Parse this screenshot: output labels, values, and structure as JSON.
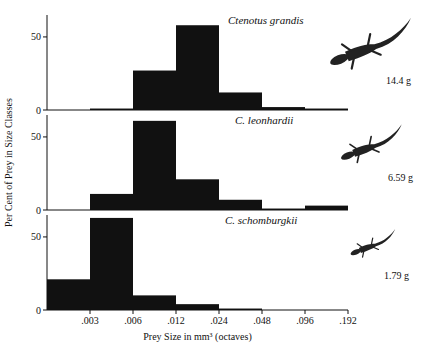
{
  "chart_data": [
    {
      "type": "histogram",
      "title": "Ctenotus grandis",
      "annotations": [
        "14.4 g"
      ],
      "bins": [
        0.0015,
        0.003,
        0.006,
        0.012,
        0.024,
        0.048,
        0.096,
        0.192
      ],
      "values": [
        0,
        1,
        27,
        58,
        12,
        2,
        1
      ],
      "xlim": [
        0.0015,
        0.192
      ],
      "log": "x",
      "ylim": [
        0,
        65
      ],
      "yticks": [
        0,
        50
      ],
      "color": "#111111"
    },
    {
      "type": "histogram",
      "title": "C. leonhardii",
      "annotations": [
        "6.59 g"
      ],
      "ylabel": "Per Cent of Prey in Size Classes",
      "bins": [
        0.0015,
        0.003,
        0.006,
        0.012,
        0.024,
        0.048,
        0.096,
        0.192
      ],
      "values": [
        0,
        11,
        61,
        21,
        7,
        1,
        3
      ],
      "xlim": [
        0.0015,
        0.192
      ],
      "log": "x",
      "ylim": [
        0,
        65
      ],
      "yticks": [
        0,
        50
      ],
      "color": "#111111"
    },
    {
      "type": "histogram",
      "title": "C. schomburgkii",
      "annotations": [
        "1.79 g"
      ],
      "xlabel": "Prey Size in mm³ (octaves)",
      "bins": [
        0.0015,
        0.003,
        0.006,
        0.012,
        0.024,
        0.048,
        0.096,
        0.192
      ],
      "values": [
        21,
        63,
        10,
        4,
        1,
        0,
        0
      ],
      "xlim": [
        0.0015,
        0.192
      ],
      "log": "x",
      "ylim": [
        0,
        65
      ],
      "yticks": [
        0,
        50
      ],
      "xticks": [
        {
          "value": 0.003,
          "label": ".003"
        },
        {
          "value": 0.006,
          "label": ".006"
        },
        {
          "value": 0.012,
          "label": ".012"
        },
        {
          "value": 0.024,
          "label": ".024"
        },
        {
          "value": 0.048,
          "label": ".048"
        },
        {
          "value": 0.096,
          "label": ".096"
        },
        {
          "value": 0.192,
          "label": ".192"
        }
      ],
      "color": "#111111"
    }
  ]
}
